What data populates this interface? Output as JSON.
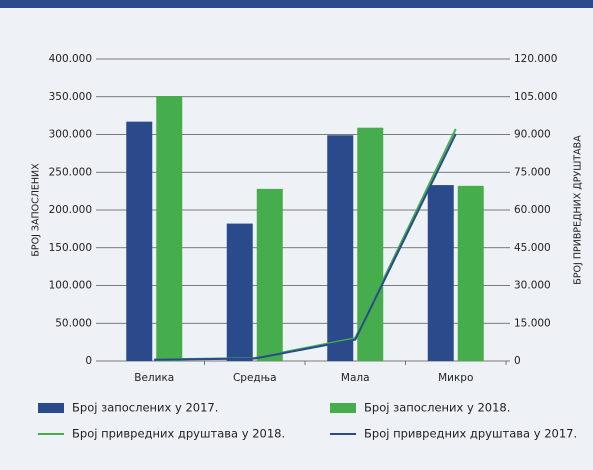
{
  "chart_data": {
    "type": "bar",
    "categories": [
      "Велика",
      "Средња",
      "Мала",
      "Микро"
    ],
    "y_label": "БРОЈ ЗАПОСЛЕНИХ",
    "y2_label": "БРОЈ ПРИВРЕДНИХ ДРУШТАВА",
    "ylim": [
      0,
      400000
    ],
    "yticks": [
      0,
      {
        "value": 50000,
        "label": "50.000"
      },
      {
        "value": 100000,
        "label": "100.000"
      },
      {
        "value": 150000,
        "label": "150.000"
      },
      {
        "value": 200000,
        "label": "200.000"
      },
      {
        "value": 250000,
        "label": "250.000"
      },
      {
        "value": 300000,
        "label": "300.000"
      },
      {
        "value": 350000,
        "label": "350.000"
      },
      {
        "value": 400000,
        "label": "400.000"
      }
    ],
    "y2lim": [
      0,
      120000
    ],
    "y2ticks": [
      0,
      {
        "value": 15000,
        "label": "15.000"
      },
      {
        "value": 30000,
        "label": "30.000"
      },
      {
        "value": 45000,
        "label": "45.000"
      },
      {
        "value": 60000,
        "label": "60.000"
      },
      {
        "value": 75000,
        "label": "75.000"
      },
      {
        "value": 90000,
        "label": "90.000"
      },
      {
        "value": 105000,
        "label": "105.000"
      },
      {
        "value": 120000,
        "label": "120.000"
      }
    ],
    "grid": true,
    "series": [
      {
        "name": "Број запослених у 2017.",
        "type": "bar",
        "color": "#2b4a8b",
        "values": [
          317000,
          182000,
          299000,
          233000
        ]
      },
      {
        "name": "Број запослених у 2018.",
        "type": "bar",
        "color": "#45ad4c",
        "values": [
          351000,
          228000,
          309000,
          232000
        ]
      },
      {
        "name": "Број привредних друштава у 2018.",
        "type": "line",
        "axis": "y2",
        "color": "#45ad4c",
        "values": [
          600,
          1200,
          9100,
          92200
        ]
      },
      {
        "name": "Број привредних друштава у 2017.",
        "type": "line",
        "axis": "y2",
        "color": "#2b4a8b",
        "values": [
          500,
          1000,
          8500,
          90200
        ]
      }
    ]
  }
}
